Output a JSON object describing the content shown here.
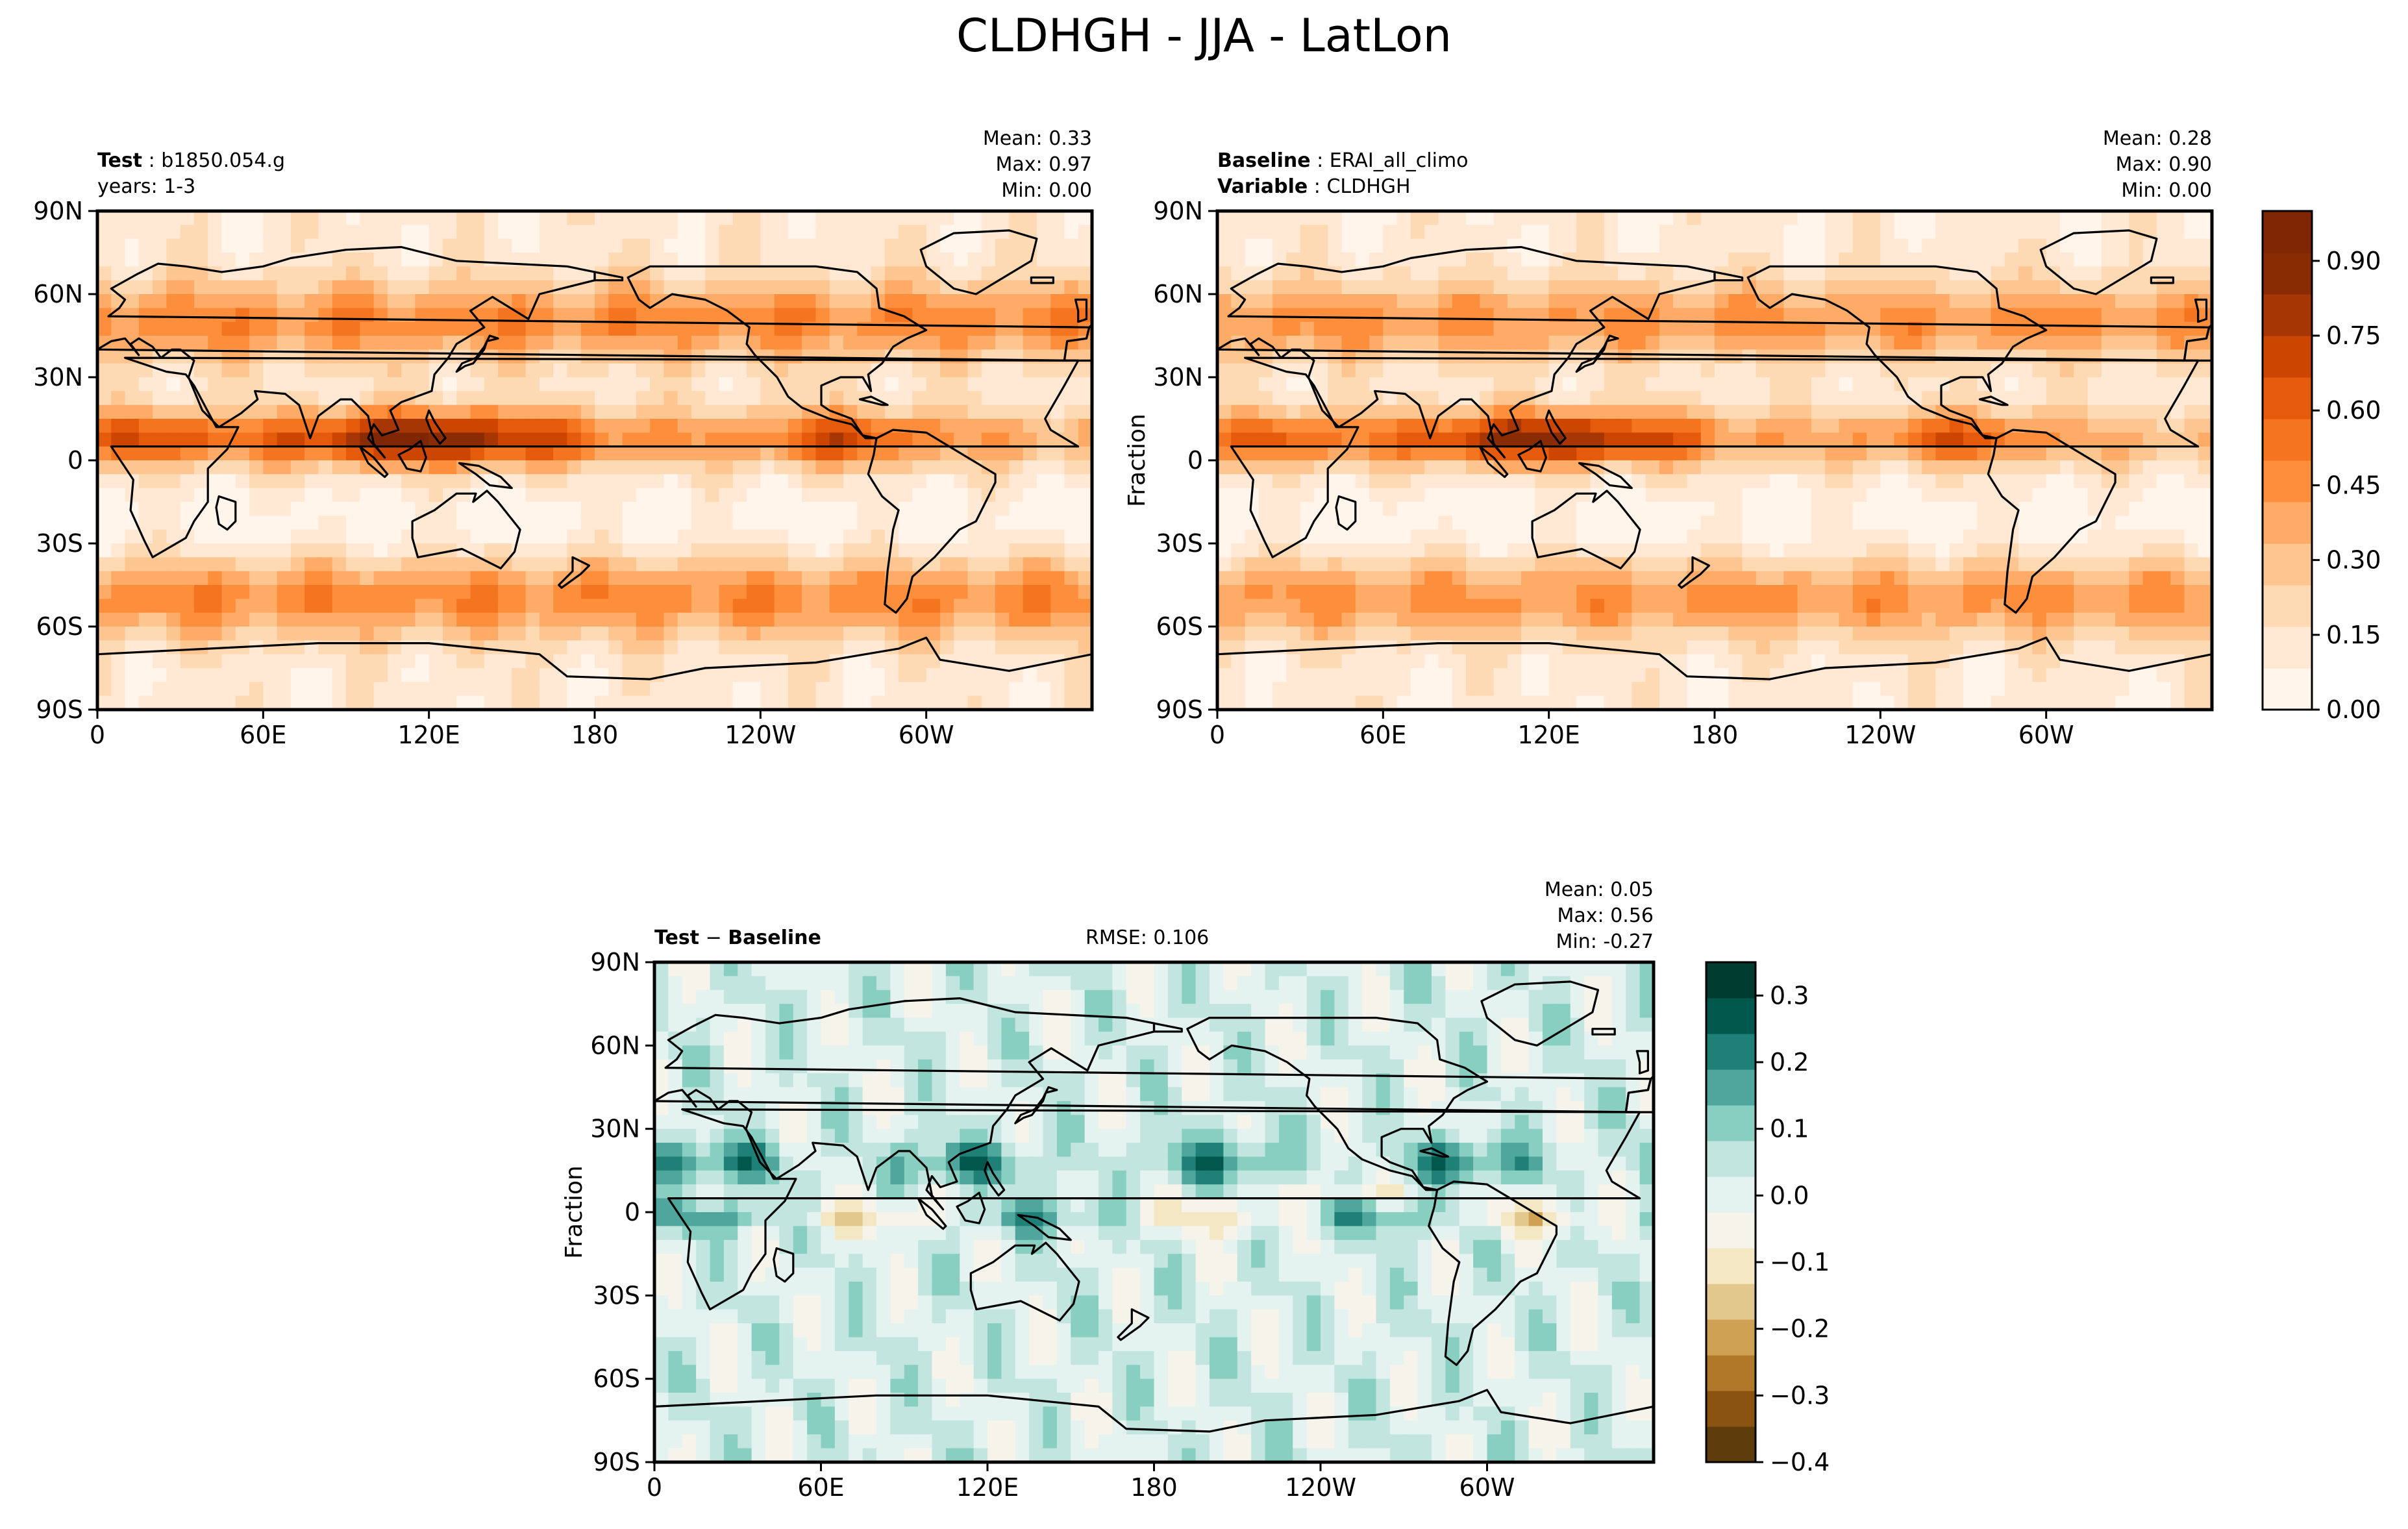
{
  "figure_title": "CLDHGH - JJA - LatLon",
  "colors": {
    "seq": [
      "#fff5eb",
      "#ffe9d4",
      "#fdd9b4",
      "#fdc590",
      "#fdab67",
      "#fd8f3c",
      "#f5741f",
      "#e55a0b",
      "#cc4602",
      "#a63603",
      "#8a2c03",
      "#7f2704"
    ],
    "div": [
      "#5e3c0b",
      "#8a5310",
      "#b07828",
      "#cfa155",
      "#e3c88d",
      "#f4e8c4",
      "#f6f3ea",
      "#e4f2f0",
      "#c2e6df",
      "#88cfc1",
      "#4ea69d",
      "#1f8077",
      "#00574c",
      "#003c30"
    ]
  },
  "panels": {
    "test": {
      "label_bold": "Test",
      "name": "b1850.054.g",
      "years": "years: 1-3",
      "stats": [
        "Mean:  0.33",
        "Max:  0.97",
        "Min:  0.00"
      ]
    },
    "baseline": {
      "label_bold": "Baseline",
      "name": "ERAI_all_climo",
      "var_bold": "Variable",
      "var_name": "CLDHGH",
      "stats": [
        "Mean:  0.28",
        "Max:  0.90",
        "Min:  0.00"
      ]
    },
    "diff": {
      "label_test": "Test",
      "minus": "−",
      "label_base": "Baseline",
      "rmse": "RMSE: 0.106",
      "stats": [
        "Mean:  0.05",
        "Max:  0.56",
        "Min: -0.27"
      ]
    }
  },
  "chart_data": [
    {
      "type": "heatmap",
      "title": "Test: b1850.054.g",
      "subtitle": "years: 1-3",
      "xlabel": "",
      "ylabel": "",
      "x_ticks": [
        "0",
        "60E",
        "120E",
        "180",
        "120W",
        "60W"
      ],
      "y_ticks": [
        "90N",
        "60N",
        "30N",
        "0",
        "30S",
        "60S",
        "90S"
      ],
      "x_range": [
        0,
        360
      ],
      "y_range": [
        -90,
        90
      ],
      "stats": {
        "mean": 0.33,
        "max": 0.97,
        "min": 0.0
      },
      "colorbar": "seq"
    },
    {
      "type": "heatmap",
      "title": "Baseline: ERAI_all_climo",
      "subtitle": "Variable: CLDHGH",
      "xlabel": "",
      "ylabel": "Fraction",
      "x_ticks": [
        "0",
        "60E",
        "120E",
        "180",
        "120W",
        "60W"
      ],
      "y_ticks": [
        "90N",
        "60N",
        "30N",
        "0",
        "30S",
        "60S",
        "90S"
      ],
      "x_range": [
        0,
        360
      ],
      "y_range": [
        -90,
        90
      ],
      "stats": {
        "mean": 0.28,
        "max": 0.9,
        "min": 0.0
      },
      "colorbar": "seq"
    },
    {
      "type": "heatmap",
      "title": "Test − Baseline",
      "subtitle": "RMSE: 0.106",
      "xlabel": "",
      "ylabel": "Fraction",
      "x_ticks": [
        "0",
        "60E",
        "120E",
        "180",
        "120W",
        "60W"
      ],
      "y_ticks": [
        "90N",
        "60N",
        "30N",
        "0",
        "30S",
        "60S",
        "90S"
      ],
      "x_range": [
        0,
        360
      ],
      "y_range": [
        -90,
        90
      ],
      "stats": {
        "mean": 0.05,
        "max": 0.56,
        "min": -0.27
      },
      "colorbar": "div"
    }
  ],
  "colorbars": {
    "seq": {
      "range": [
        0.0,
        1.0
      ],
      "ticks": [
        0.0,
        0.15,
        0.3,
        0.45,
        0.6,
        0.75,
        0.9
      ],
      "labels": [
        "0.00",
        "0.15",
        "0.30",
        "0.45",
        "0.60",
        "0.75",
        "0.90"
      ]
    },
    "div": {
      "range": [
        -0.4,
        0.35
      ],
      "ticks": [
        -0.4,
        -0.3,
        -0.2,
        -0.1,
        0.0,
        0.1,
        0.2,
        0.3
      ],
      "labels": [
        "−0.4",
        "−0.3",
        "−0.2",
        "−0.1",
        "0.0",
        "0.1",
        "0.2",
        "0.3"
      ]
    }
  }
}
